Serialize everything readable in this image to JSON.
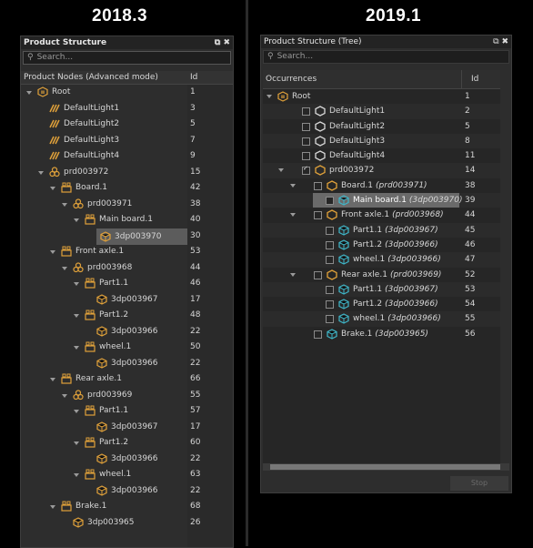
{
  "left": {
    "version": "2018.3",
    "title": "Product Structure",
    "search_placeholder": "Search...",
    "col_nodes": "Product Nodes  (Advanced mode)",
    "col_id": "Id",
    "rows": [
      {
        "label": "Root",
        "id": "1",
        "level": 0,
        "icon": "assembly",
        "arrow": "open"
      },
      {
        "label": "DefaultLight1",
        "id": "3",
        "level": 1,
        "icon": "light"
      },
      {
        "label": "DefaultLight2",
        "id": "5",
        "level": 1,
        "icon": "light"
      },
      {
        "label": "DefaultLight3",
        "id": "7",
        "level": 1,
        "icon": "light"
      },
      {
        "label": "DefaultLight4",
        "id": "9",
        "level": 1,
        "icon": "light"
      },
      {
        "label": "prd003972",
        "id": "15",
        "level": 1,
        "icon": "product",
        "arrow": "open"
      },
      {
        "label": "Board.1",
        "id": "42",
        "level": 2,
        "icon": "occurrence",
        "arrow": "open"
      },
      {
        "label": "prd003971",
        "id": "38",
        "level": 3,
        "icon": "product",
        "arrow": "open"
      },
      {
        "label": "Main board.1",
        "id": "40",
        "level": 4,
        "icon": "occurrence",
        "arrow": "open"
      },
      {
        "label": "3dp003970",
        "id": "30",
        "level": 5,
        "icon": "part",
        "selected": true
      },
      {
        "label": "Front axle.1",
        "id": "53",
        "level": 2,
        "icon": "occurrence",
        "arrow": "open"
      },
      {
        "label": "prd003968",
        "id": "44",
        "level": 3,
        "icon": "product",
        "arrow": "open"
      },
      {
        "label": "Part1.1",
        "id": "46",
        "level": 4,
        "icon": "occurrence",
        "arrow": "open"
      },
      {
        "label": "3dp003967",
        "id": "17",
        "level": 5,
        "icon": "part"
      },
      {
        "label": "Part1.2",
        "id": "48",
        "level": 4,
        "icon": "occurrence",
        "arrow": "open"
      },
      {
        "label": "3dp003966",
        "id": "22",
        "level": 5,
        "icon": "part"
      },
      {
        "label": "wheel.1",
        "id": "50",
        "level": 4,
        "icon": "occurrence",
        "arrow": "open"
      },
      {
        "label": "3dp003966",
        "id": "22",
        "level": 5,
        "icon": "part"
      },
      {
        "label": "Rear axle.1",
        "id": "66",
        "level": 2,
        "icon": "occurrence",
        "arrow": "open"
      },
      {
        "label": "prd003969",
        "id": "55",
        "level": 3,
        "icon": "product",
        "arrow": "open"
      },
      {
        "label": "Part1.1",
        "id": "57",
        "level": 4,
        "icon": "occurrence",
        "arrow": "open"
      },
      {
        "label": "3dp003967",
        "id": "17",
        "level": 5,
        "icon": "part"
      },
      {
        "label": "Part1.2",
        "id": "60",
        "level": 4,
        "icon": "occurrence",
        "arrow": "open"
      },
      {
        "label": "3dp003966",
        "id": "22",
        "level": 5,
        "icon": "part"
      },
      {
        "label": "wheel.1",
        "id": "63",
        "level": 4,
        "icon": "occurrence",
        "arrow": "open"
      },
      {
        "label": "3dp003966",
        "id": "22",
        "level": 5,
        "icon": "part"
      },
      {
        "label": "Brake.1",
        "id": "68",
        "level": 2,
        "icon": "occurrence",
        "arrow": "open"
      },
      {
        "label": "3dp003965",
        "id": "26",
        "level": 3,
        "icon": "part"
      }
    ]
  },
  "right": {
    "version": "2019.1",
    "title": "Product Structure (Tree)",
    "search_placeholder": "Search...",
    "col_occ": "Occurrences",
    "col_id": "Id",
    "stop_label": "Stop",
    "rows": [
      {
        "label": "Root",
        "sub": "",
        "id": "1",
        "level": 0,
        "icon": "assembly",
        "arrow": "open",
        "cb": false
      },
      {
        "label": "DefaultLight1",
        "sub": "",
        "id": "2",
        "level": 1,
        "icon": "hex",
        "cb": true
      },
      {
        "label": "DefaultLight2",
        "sub": "",
        "id": "5",
        "level": 1,
        "icon": "hex",
        "cb": true
      },
      {
        "label": "DefaultLight3",
        "sub": "",
        "id": "8",
        "level": 1,
        "icon": "hex",
        "cb": true
      },
      {
        "label": "DefaultLight4",
        "sub": "",
        "id": "11",
        "level": 1,
        "icon": "hex",
        "cb": true
      },
      {
        "label": "prd003972",
        "sub": "",
        "id": "14",
        "level": 1,
        "icon": "hexorange",
        "arrow": "open",
        "cb": true,
        "checked": true
      },
      {
        "label": "Board.1",
        "sub": "(prd003971)",
        "id": "38",
        "level": 2,
        "icon": "hexorange",
        "arrow": "open",
        "cb": true
      },
      {
        "label": "Main board.1",
        "sub": "(3dp003970)",
        "id": "39",
        "level": 3,
        "icon": "part",
        "cb": true,
        "selected": true
      },
      {
        "label": "Front axle.1",
        "sub": "(prd003968)",
        "id": "44",
        "level": 2,
        "icon": "hexorange",
        "arrow": "open",
        "cb": true
      },
      {
        "label": "Part1.1",
        "sub": "(3dp003967)",
        "id": "45",
        "level": 3,
        "icon": "part",
        "cb": true
      },
      {
        "label": "Part1.2",
        "sub": "(3dp003966)",
        "id": "46",
        "level": 3,
        "icon": "part",
        "cb": true
      },
      {
        "label": "wheel.1",
        "sub": "(3dp003966)",
        "id": "47",
        "level": 3,
        "icon": "part",
        "cb": true
      },
      {
        "label": "Rear axle.1",
        "sub": "(prd003969)",
        "id": "52",
        "level": 2,
        "icon": "hexorange",
        "arrow": "open",
        "cb": true
      },
      {
        "label": "Part1.1",
        "sub": "(3dp003967)",
        "id": "53",
        "level": 3,
        "icon": "part",
        "cb": true
      },
      {
        "label": "Part1.2",
        "sub": "(3dp003966)",
        "id": "54",
        "level": 3,
        "icon": "part",
        "cb": true
      },
      {
        "label": "wheel.1",
        "sub": "(3dp003966)",
        "id": "55",
        "level": 3,
        "icon": "part",
        "cb": true
      },
      {
        "label": "Brake.1",
        "sub": "(3dp003965)",
        "id": "56",
        "level": 2,
        "icon": "part",
        "cb": true
      }
    ]
  },
  "colors": {
    "orange": "#e0a13a",
    "cyan": "#3fb6c8",
    "selection": "#5a5a5a"
  }
}
